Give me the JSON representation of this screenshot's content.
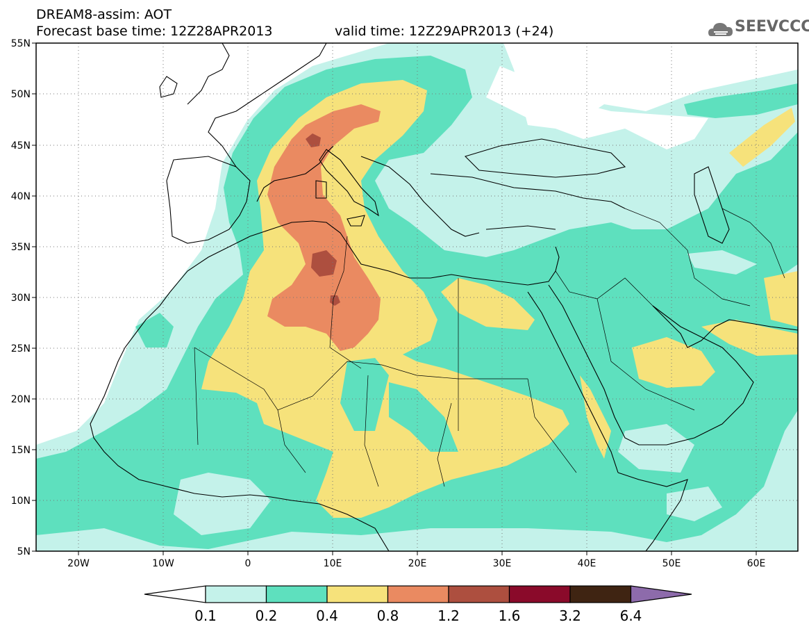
{
  "header": {
    "title_line1": "DREAM8-assim: AOT",
    "title_line2": "Forecast base time: 12Z28APR2013",
    "valid_time": "valid time: 12Z29APR2013 (+24)",
    "logo_text": "SEEVCCC"
  },
  "map": {
    "lat_labels": [
      "55N",
      "50N",
      "45N",
      "40N",
      "35N",
      "30N",
      "25N",
      "20N",
      "15N",
      "10N",
      "5N"
    ],
    "lon_labels": [
      "20W",
      "10W",
      "0",
      "10E",
      "20E",
      "30E",
      "40E",
      "50E",
      "60E"
    ],
    "lat_range": [
      5,
      55
    ],
    "lon_range": [
      -25,
      65
    ],
    "grid": true
  },
  "colorbar": {
    "levels": [
      "0.1",
      "0.2",
      "0.4",
      "0.8",
      "1.2",
      "1.6",
      "3.2",
      "6.4"
    ],
    "colors": [
      "#ffffff",
      "#c4f2ea",
      "#5ee0be",
      "#f6e27b",
      "#ea8a61",
      "#ad4f3f",
      "#8a0a2a",
      "#3f2412",
      "#8d6bab"
    ]
  }
}
